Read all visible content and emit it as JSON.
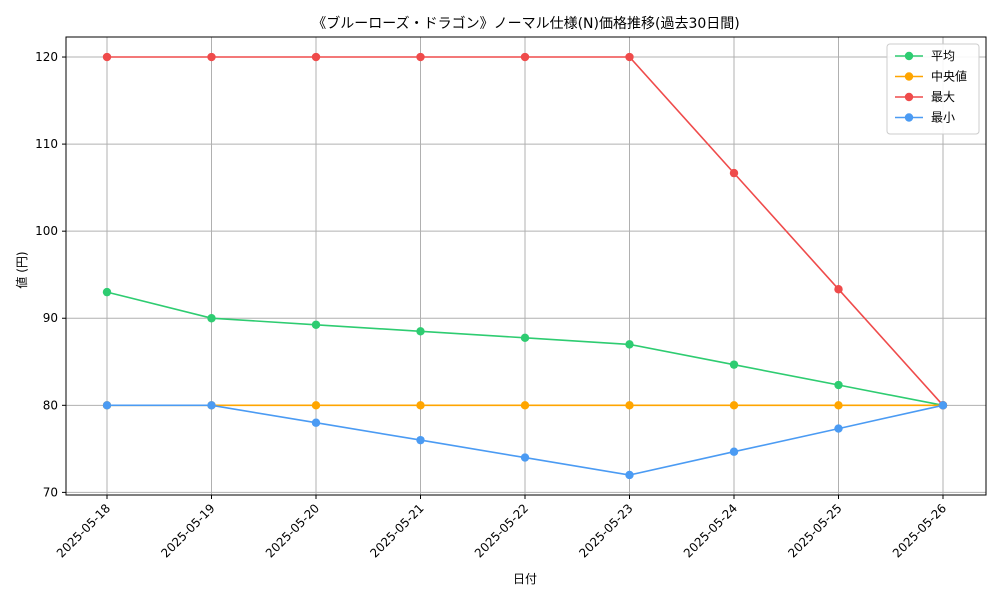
{
  "chart_data": {
    "type": "line",
    "title": "《ブルーローズ・ドラゴン》ノーマル仕様(N)価格推移(過去30日間)",
    "xlabel": "日付",
    "ylabel": "値 (円)",
    "categories": [
      "2025-05-18",
      "2025-05-19",
      "2025-05-20",
      "2025-05-21",
      "2025-05-22",
      "2025-05-23",
      "2025-05-24",
      "2025-05-25",
      "2025-05-26"
    ],
    "ylim": [
      69.7,
      122.3
    ],
    "yticks": [
      70,
      80,
      90,
      100,
      110,
      120
    ],
    "grid": true,
    "legend_position": "top-right",
    "series": [
      {
        "name": "平均",
        "color": "#2ecc71",
        "values": [
          93.0,
          90.0,
          89.25,
          88.5,
          87.75,
          87.0,
          84.67,
          82.33,
          80.0
        ]
      },
      {
        "name": "中央値",
        "color": "#ffa500",
        "values": [
          80,
          80,
          80,
          80,
          80,
          80,
          80,
          80,
          80
        ]
      },
      {
        "name": "最大",
        "color": "#ef4b4b",
        "values": [
          120,
          120,
          120,
          120,
          120,
          120,
          106.67,
          93.33,
          80
        ]
      },
      {
        "name": "最小",
        "color": "#4b9bf3",
        "values": [
          80,
          80,
          78,
          76,
          74,
          72,
          74.67,
          77.33,
          80
        ]
      }
    ]
  }
}
